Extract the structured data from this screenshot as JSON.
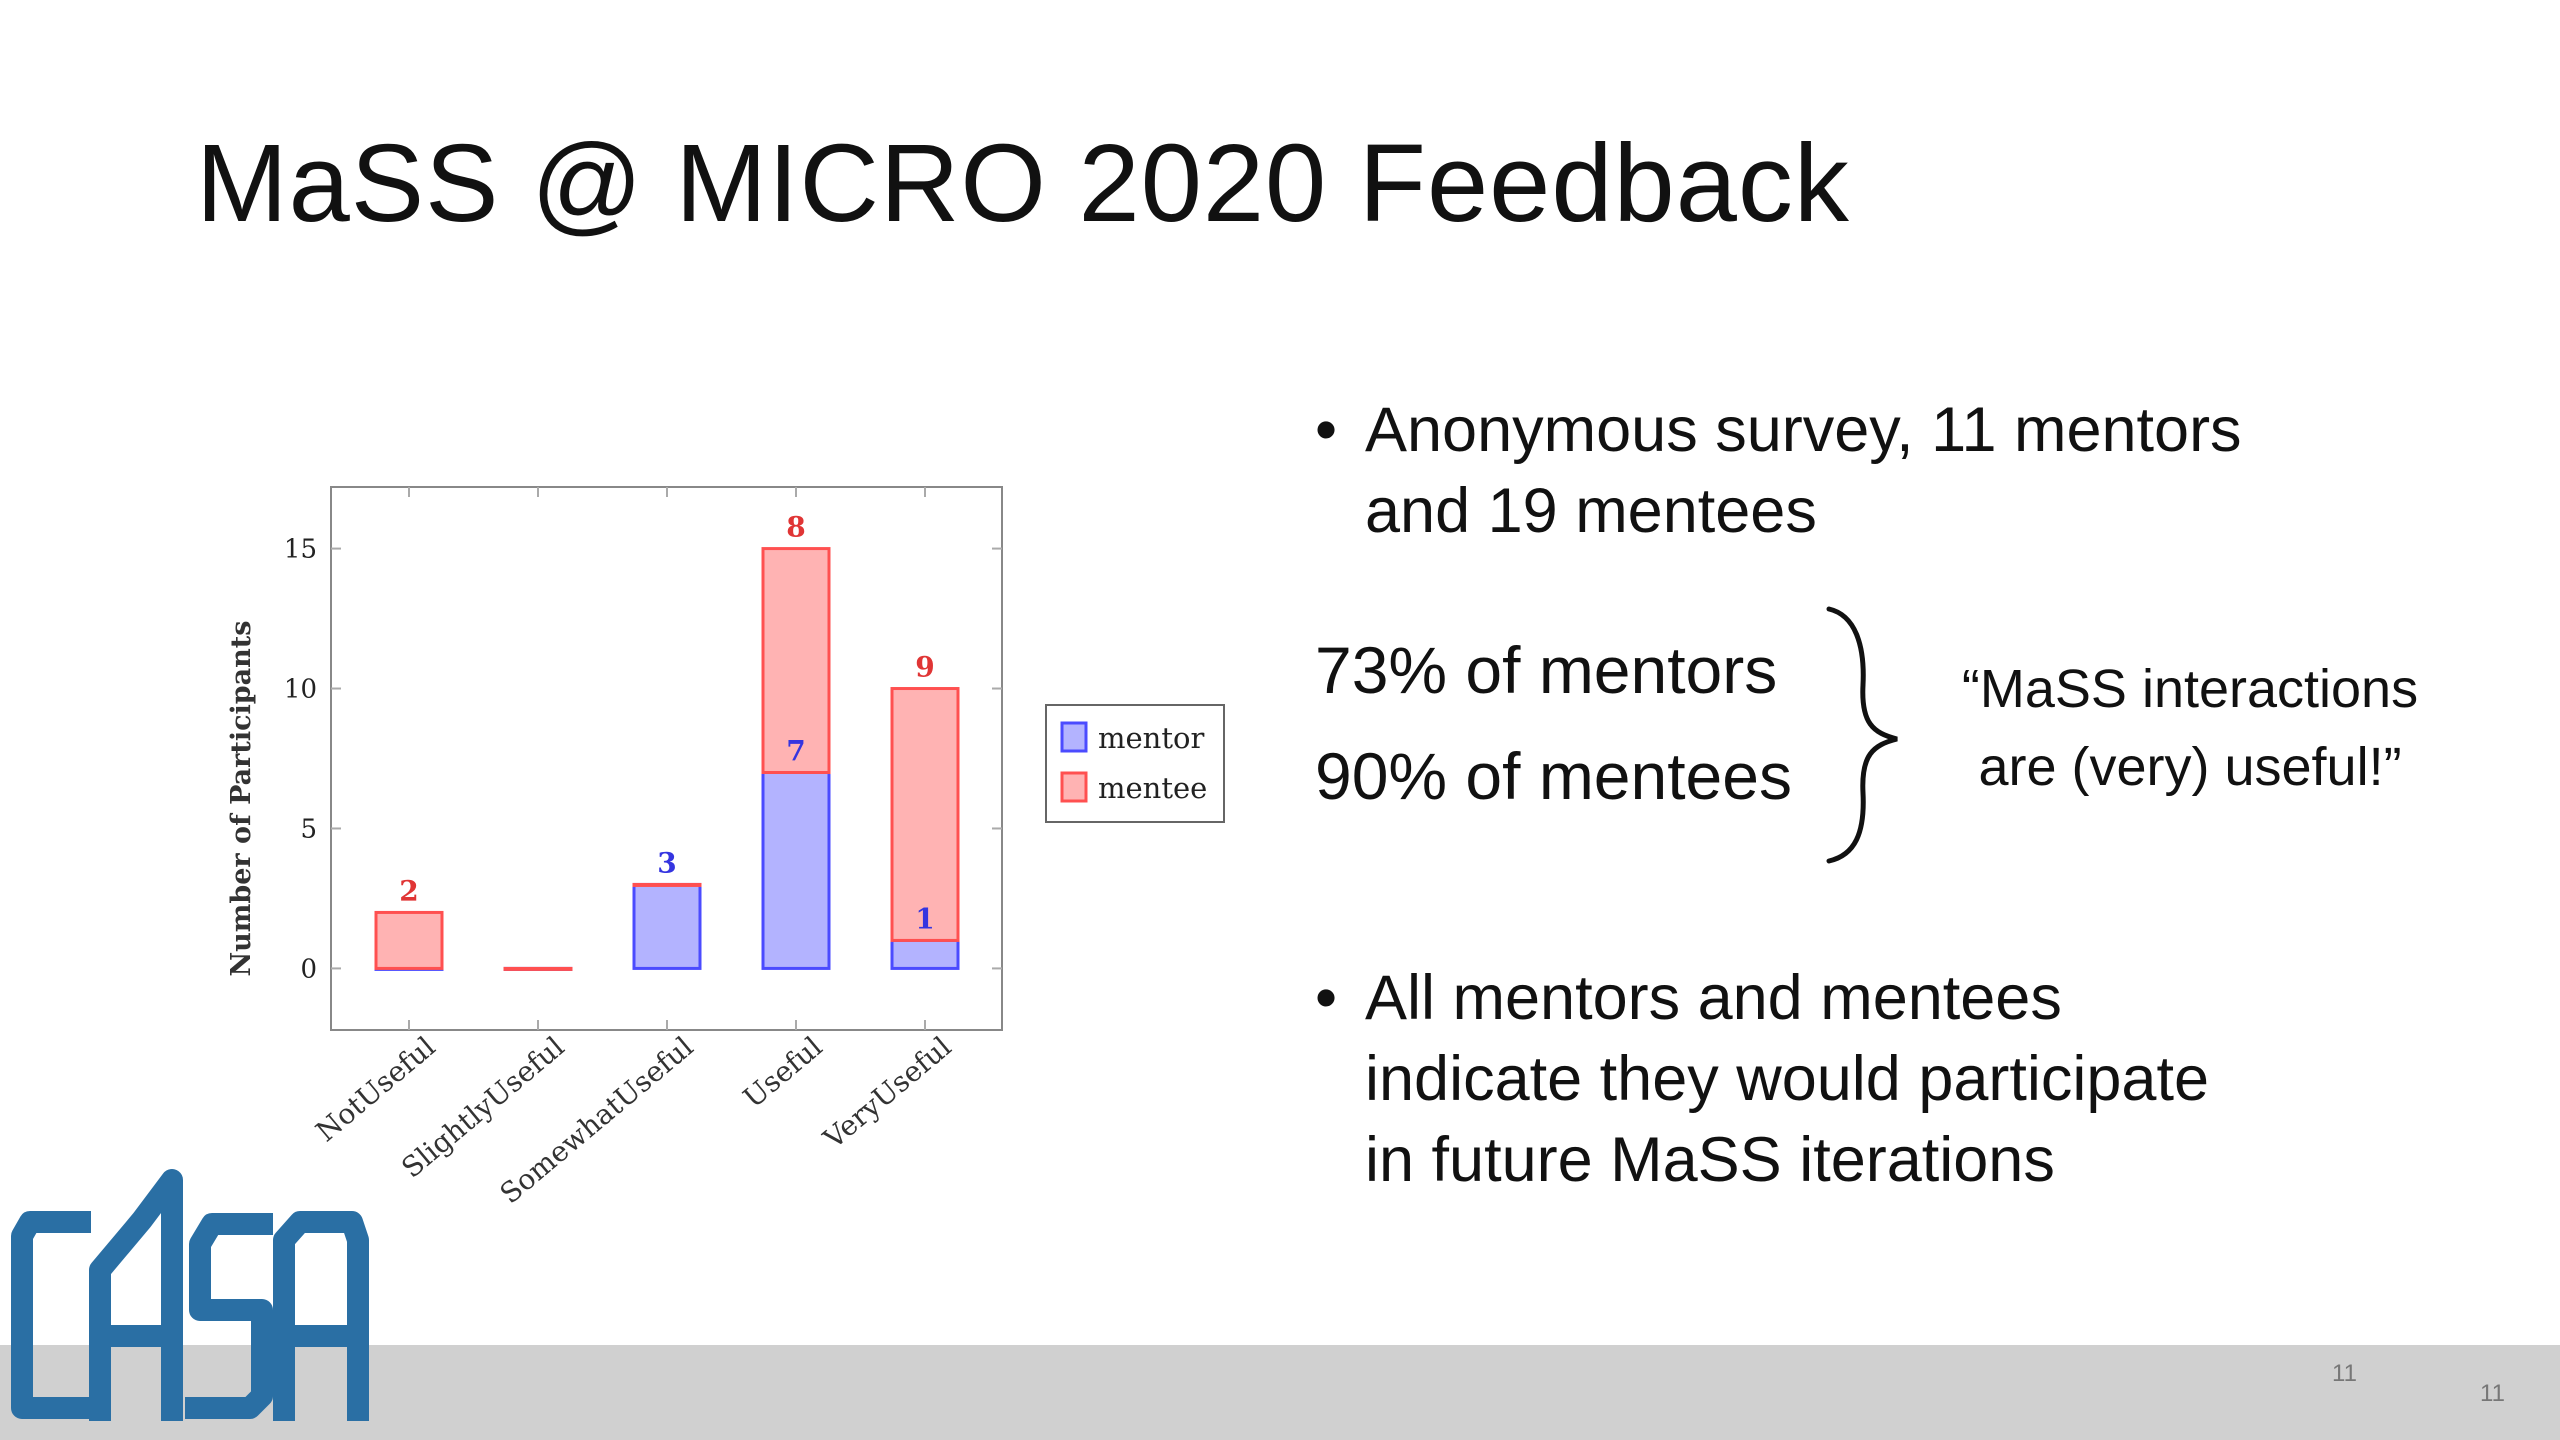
{
  "slide": {
    "title": "MaSS @ MICRO 2020 Feedback",
    "bullet1_line1": "Anonymous survey, 11 mentors",
    "bullet1_line2": "and 19 mentees",
    "stat_mentors": "73% of mentors",
    "stat_mentees": "90% of mentees",
    "quote_line1": "“MaSS interactions",
    "quote_line2": "are (very) useful!”",
    "bullet2_line1": "All mentors and mentees",
    "bullet2_line2": "indicate they would participate",
    "bullet2_line3": "in future MaSS iterations",
    "bullet_symbol": "•",
    "page_number_inner": "11",
    "page_number_outer": "11",
    "logo_text": "CASA",
    "colors": {
      "accent_blue": "#2a6fa4",
      "footer_bar": "#d0d0d0"
    }
  },
  "chart_data": {
    "type": "bar",
    "stacked": true,
    "categories": [
      "NotUseful",
      "SlightlyUseful",
      "SomewhatUseful",
      "Useful",
      "VeryUseful"
    ],
    "series": [
      {
        "name": "mentor",
        "values": [
          0,
          0,
          3,
          7,
          1
        ],
        "color": "#b3b3ff",
        "stroke": "#4b4bff",
        "label_color": "#3535e0"
      },
      {
        "name": "mentee",
        "values": [
          2,
          0,
          0,
          8,
          9
        ],
        "color": "#ffb3b3",
        "stroke": "#ff5050",
        "label_color": "#e03535"
      }
    ],
    "data_labels": [
      {
        "category": "NotUseful",
        "series": "mentee",
        "text": "2"
      },
      {
        "category": "SomewhatUseful",
        "series": "mentor",
        "text": "3"
      },
      {
        "category": "Useful",
        "series": "mentor",
        "text": "7"
      },
      {
        "category": "Useful",
        "series": "mentee",
        "text": "8"
      },
      {
        "category": "VeryUseful",
        "series": "mentor",
        "text": "1"
      },
      {
        "category": "VeryUseful",
        "series": "mentee",
        "text": "9"
      }
    ],
    "ylabel": "Number of Participants",
    "xlabel": "",
    "ylim": [
      -2.2,
      17.2
    ],
    "yticks": [
      0,
      5,
      10,
      15
    ],
    "legend_position": "right"
  }
}
